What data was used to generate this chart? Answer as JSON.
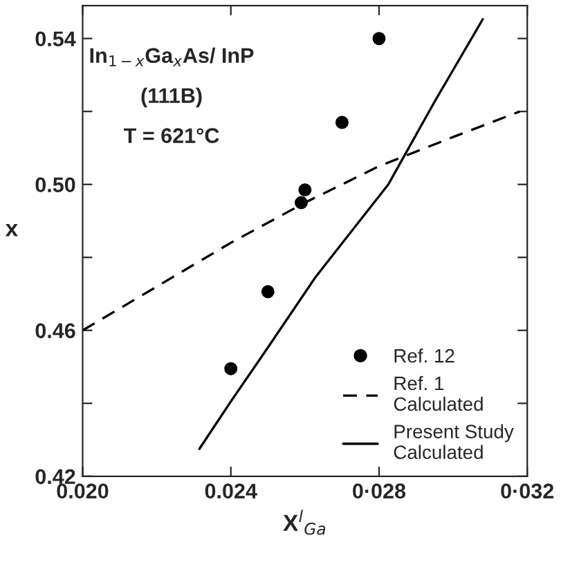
{
  "chart_data": {
    "type": "line",
    "xlabel": "X$^{l}$$_{Ga}$",
    "ylabel": "x",
    "xlim": [
      0.02,
      0.032
    ],
    "ylim": [
      0.42,
      0.549
    ],
    "xticks": [
      {
        "value": 0.02,
        "label": "0.020"
      },
      {
        "value": 0.024,
        "label": "0.024"
      },
      {
        "value": 0.028,
        "label": "0·028"
      },
      {
        "value": 0.032,
        "label": "0·032"
      }
    ],
    "yticks": [
      0.42,
      {
        "value": 0.44,
        "label": null
      },
      0.46,
      {
        "value": 0.48,
        "label": null
      },
      {
        "value": 0.5,
        "label": "0.50"
      },
      {
        "value": 0.52,
        "label": null
      },
      0.54
    ],
    "annotations": [
      "In$_{1−x}$Ga$_{x}$As/ InP",
      "(111B)",
      "T = 621°C"
    ],
    "legend": "bottom right",
    "grid": false,
    "series": [
      {
        "name": "Ref. 12",
        "type": "scatter",
        "marker": "circle",
        "color": "#000000",
        "x": [
          0.028,
          0.027,
          0.026,
          0.0259,
          0.025,
          0.024
        ],
        "values": [
          0.54,
          0.517,
          0.4985,
          0.495,
          0.4706,
          0.4495
        ]
      },
      {
        "name": "Ref. 1\nCalculated",
        "line_style": "dashed",
        "color": "#000000",
        "x": [
          0.02,
          0.022,
          0.024,
          0.026,
          0.028,
          0.03,
          0.0318
        ],
        "values": [
          0.46,
          0.472,
          0.484,
          0.495,
          0.505,
          0.513,
          0.52
        ]
      },
      {
        "name": "Present Study\nCalculated",
        "line_style": "solid",
        "color": "#000000",
        "x": [
          0.02315,
          0.024,
          0.025,
          0.0263,
          0.02825,
          0.0295,
          0.0308
        ],
        "values": [
          0.4275,
          0.4405,
          0.4553,
          0.4748,
          0.5,
          0.5227,
          0.5453
        ]
      }
    ]
  }
}
